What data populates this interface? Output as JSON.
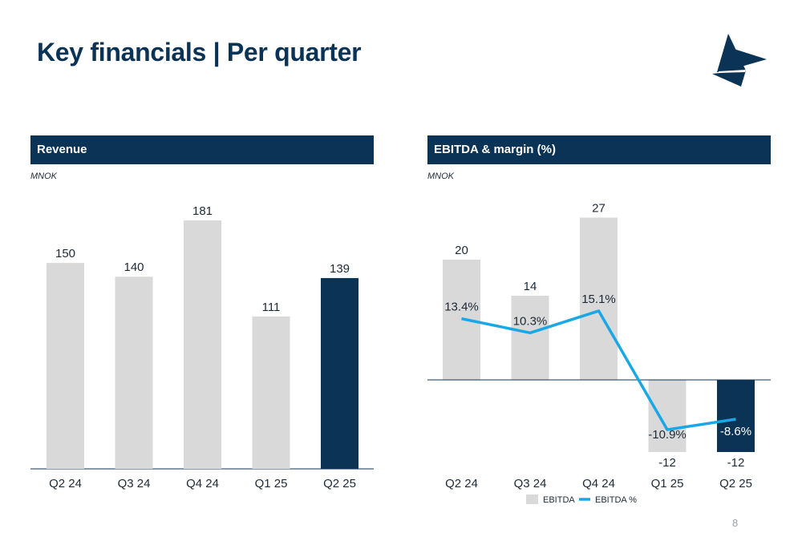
{
  "slide": {
    "title": "Key financials | Per quarter",
    "page_number": "8"
  },
  "colors": {
    "navy": "#0b3356",
    "grey_bar": "#d9d9da",
    "line": "#1aa7e6",
    "axis": "#0b3356"
  },
  "chart_data": [
    {
      "type": "bar",
      "title": "Revenue",
      "unit": "MNOK",
      "categories": [
        "Q2 24",
        "Q3 24",
        "Q4 24",
        "Q1 25",
        "Q2 25"
      ],
      "values": [
        150,
        140,
        181,
        111,
        139
      ],
      "highlight_index": 4,
      "ylim": [
        0,
        181
      ]
    },
    {
      "type": "bar",
      "title": "EBITDA & margin (%)",
      "unit": "MNOK",
      "categories": [
        "Q2 24",
        "Q3 24",
        "Q4 24",
        "Q1 25",
        "Q2 25"
      ],
      "series": [
        {
          "name": "EBITDA",
          "type": "bar",
          "values": [
            20,
            14,
            27,
            -12,
            -12
          ],
          "labels": [
            "20",
            "14",
            "27",
            "-12",
            "-12"
          ],
          "highlight_index": 4
        },
        {
          "name": "EBITDA %",
          "type": "line",
          "values": [
            13.4,
            10.3,
            15.1,
            -10.9,
            -8.6
          ],
          "labels": [
            "13.4%",
            "10.3%",
            "15.1%",
            "-10.9%",
            "-8.6%"
          ]
        }
      ],
      "legend_position": "bottom"
    }
  ]
}
